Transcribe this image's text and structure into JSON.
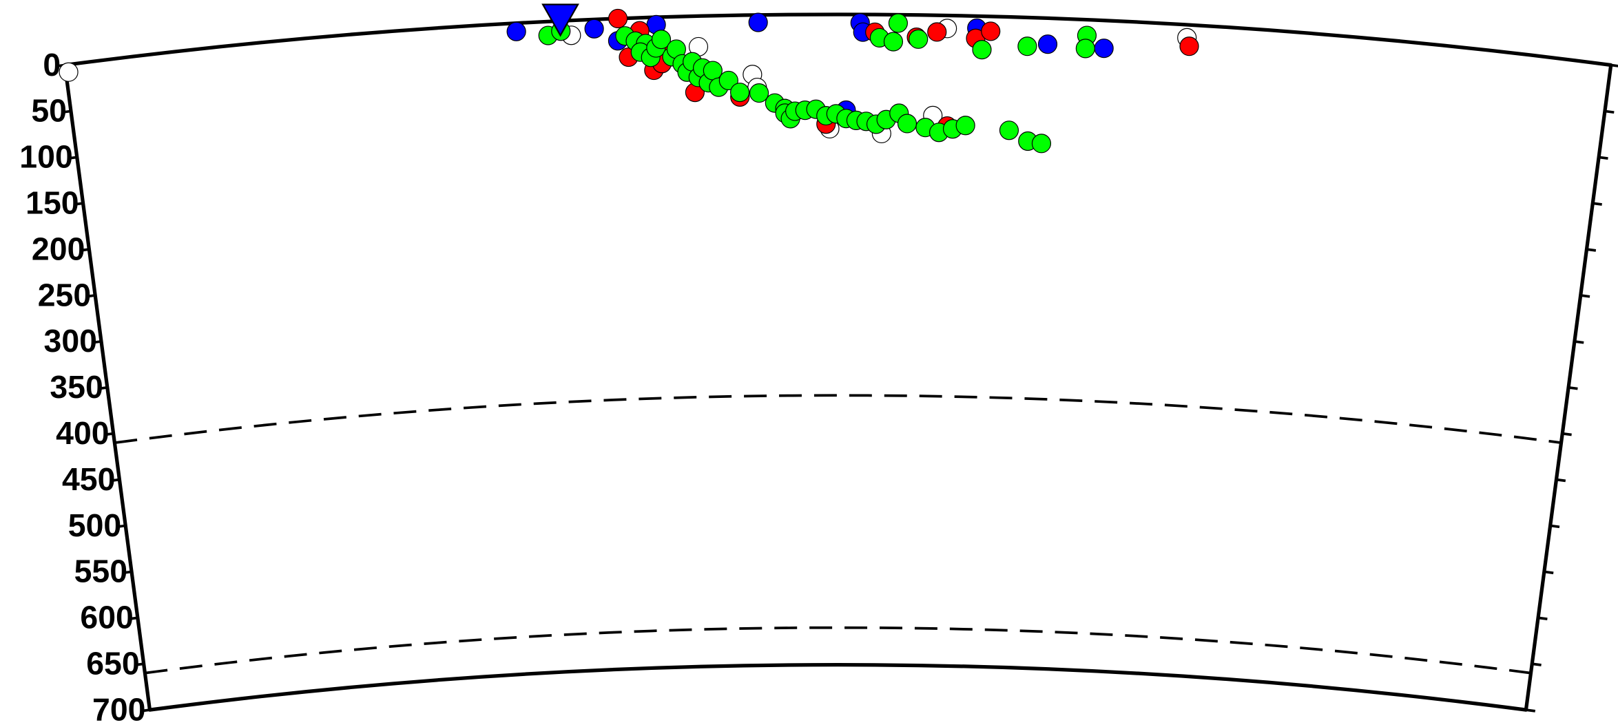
{
  "chart_data": {
    "type": "scatter",
    "xlim": [
      0,
      1670
    ],
    "ylim": [
      0,
      700
    ],
    "yticks": [
      0,
      50,
      100,
      150,
      200,
      250,
      300,
      350,
      400,
      450,
      500,
      550,
      600,
      650,
      700
    ],
    "discontinuities": [
      410,
      660
    ],
    "station": {
      "x": 536,
      "color": "#0000ff"
    },
    "series": [
      {
        "color": "#ffffff",
        "x": [
          3,
          547,
          684,
          742,
          747,
          953,
          939,
          826,
          883,
          1212
        ],
        "values": [
          8,
          16,
          33,
          64,
          78,
          14,
          108,
          123,
          128,
          14
        ]
      },
      {
        "color": "#0000ff",
        "x": [
          488,
          572,
          597,
          639,
          749,
          859,
          862,
          985,
          1062,
          1123,
          844
        ],
        "values": [
          9,
          10,
          24,
          8,
          8,
          9,
          19,
          13,
          28,
          30,
          103
        ]
      },
      {
        "color": "#ff0000",
        "x": [
          598,
          621,
          608,
          635,
          644,
          655,
          679,
          728,
          822,
          875,
          920,
          942,
          984,
          1000,
          955,
          1215
        ],
        "values": [
          0,
          14,
          42,
          57,
          50,
          37,
          82,
          88,
          118,
          19,
          24,
          18,
          24,
          16,
          119,
          23
        ]
      },
      {
        "color": "#00ff00",
        "x": [
          522,
          536,
          605,
          616,
          627,
          621,
          632,
          638,
          644,
          655,
          660,
          666,
          671,
          677,
          683,
          688,
          694,
          699,
          705,
          716,
          728,
          749,
          766,
          777,
          777,
          783,
          788,
          799,
          811,
          822,
          833,
          844,
          855,
          866,
          877,
          888,
          902,
          911,
          931,
          946,
          961,
          975,
          1023,
          1044,
          1059,
          880,
          900,
          895,
          922,
          991,
          1040,
          1104,
          1103
        ],
        "values": [
          15,
          11,
          19,
          25,
          28,
          37,
          43,
          33,
          24,
          43,
          35,
          51,
          60,
          49,
          66,
          56,
          72,
          59,
          77,
          70,
          83,
          84,
          95,
          101,
          106,
          112,
          104,
          103,
          102,
          109,
          107,
          112,
          114,
          115,
          118,
          113,
          106,
          117,
          121,
          126,
          122,
          118,
          122,
          133,
          135,
          25,
          9,
          29,
          26,
          36,
          31,
          17,
          31
        ]
      }
    ]
  }
}
